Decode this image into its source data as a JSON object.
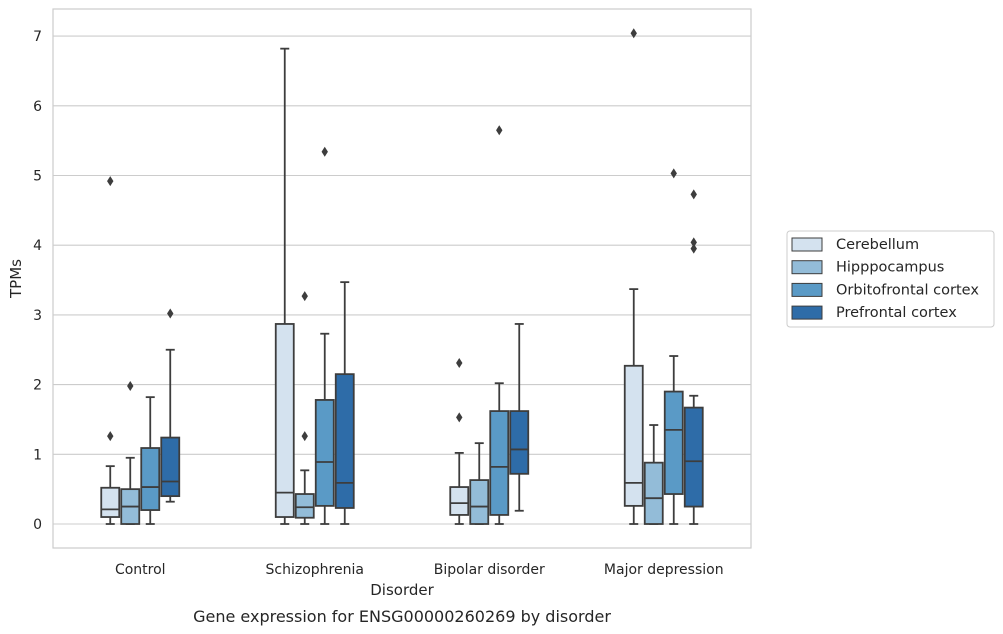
{
  "caption": "Gene expression for ENSG00000260269 by disorder",
  "chart_data": {
    "type": "box",
    "title": "",
    "xlabel": "Disorder",
    "ylabel": "TPMs",
    "ylim": [
      -0.35,
      7.4
    ],
    "yticks": [
      0,
      1,
      2,
      3,
      4,
      5,
      6,
      7
    ],
    "grid": "horizontal",
    "legend_position": "right",
    "categories": [
      "Control",
      "Schizophrenia",
      "Bipolar disorder",
      "Major depression"
    ],
    "series": [
      {
        "name": "Cerebellum",
        "color": "#d4e2ef",
        "boxes": [
          {
            "whislo": 0.0,
            "q1": 0.1,
            "med": 0.21,
            "q3": 0.52,
            "whishi": 0.83,
            "fliers": [
              1.26,
              4.92
            ]
          },
          {
            "whislo": 0.0,
            "q1": 0.1,
            "med": 0.45,
            "q3": 2.87,
            "whishi": 6.82,
            "fliers": []
          },
          {
            "whislo": 0.0,
            "q1": 0.13,
            "med": 0.3,
            "q3": 0.53,
            "whishi": 1.02,
            "fliers": [
              1.53,
              2.31
            ]
          },
          {
            "whislo": 0.0,
            "q1": 0.26,
            "med": 0.59,
            "q3": 2.27,
            "whishi": 3.37,
            "fliers": [
              7.04
            ]
          }
        ]
      },
      {
        "name": "Hipppocampus",
        "color": "#93bcd8",
        "boxes": [
          {
            "whislo": 0.0,
            "q1": 0.0,
            "med": 0.25,
            "q3": 0.5,
            "whishi": 0.95,
            "fliers": [
              1.98
            ]
          },
          {
            "whislo": 0.0,
            "q1": 0.09,
            "med": 0.24,
            "q3": 0.43,
            "whishi": 0.77,
            "fliers": [
              1.26,
              3.27
            ]
          },
          {
            "whislo": 0.0,
            "q1": 0.0,
            "med": 0.25,
            "q3": 0.63,
            "whishi": 1.16,
            "fliers": []
          },
          {
            "whislo": 0.0,
            "q1": 0.0,
            "med": 0.37,
            "q3": 0.88,
            "whishi": 1.42,
            "fliers": []
          }
        ]
      },
      {
        "name": "Orbitofrontal cortex",
        "color": "#5a9ac6",
        "boxes": [
          {
            "whislo": 0.0,
            "q1": 0.2,
            "med": 0.53,
            "q3": 1.09,
            "whishi": 1.82,
            "fliers": []
          },
          {
            "whislo": 0.0,
            "q1": 0.26,
            "med": 0.89,
            "q3": 1.78,
            "whishi": 2.73,
            "fliers": [
              5.34
            ]
          },
          {
            "whislo": 0.0,
            "q1": 0.13,
            "med": 0.82,
            "q3": 1.62,
            "whishi": 2.02,
            "fliers": [
              5.65
            ]
          },
          {
            "whislo": 0.0,
            "q1": 0.43,
            "med": 1.35,
            "q3": 1.9,
            "whishi": 2.41,
            "fliers": [
              5.03
            ]
          }
        ]
      },
      {
        "name": "Prefrontal cortex",
        "color": "#2e6ca8",
        "boxes": [
          {
            "whislo": 0.32,
            "q1": 0.4,
            "med": 0.61,
            "q3": 1.24,
            "whishi": 2.5,
            "fliers": [
              3.02
            ]
          },
          {
            "whislo": 0.0,
            "q1": 0.23,
            "med": 0.59,
            "q3": 2.15,
            "whishi": 3.47,
            "fliers": []
          },
          {
            "whislo": 0.19,
            "q1": 0.72,
            "med": 1.07,
            "q3": 1.62,
            "whishi": 2.87,
            "fliers": []
          },
          {
            "whislo": 0.0,
            "q1": 0.25,
            "med": 0.9,
            "q3": 1.67,
            "whishi": 1.84,
            "fliers": [
              3.95,
              4.04,
              4.73
            ]
          }
        ]
      }
    ]
  }
}
